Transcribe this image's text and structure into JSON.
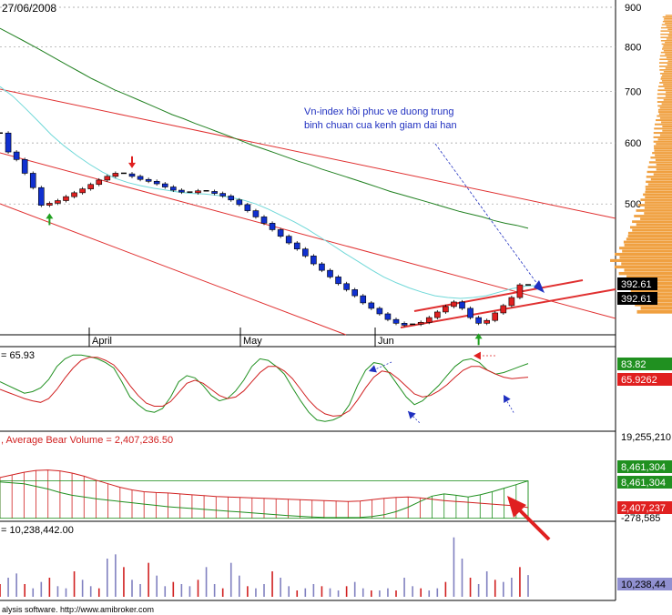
{
  "header": {
    "date": "27/06/2008",
    "footer": "alysis software. http://www.amibroker.com"
  },
  "annotation": {
    "line1": "Vn-index hồi phuc ve duong trung",
    "line2": "binh chuan cua kenh giam dai han"
  },
  "colors": {
    "up_candle": "#e02020",
    "down_candle": "#1030d0",
    "channel": "#e03030",
    "ma_long": "#208020",
    "ma_short": "#70d8d8",
    "osc_green": "#209020",
    "osc_red": "#d02020",
    "volume_bar": "#8080c0"
  },
  "chart_data": [
    {
      "type": "candlestick",
      "title": "",
      "y_scale": "log",
      "ylim": [
        340,
        900
      ],
      "y_ticks": [
        "900",
        "800",
        "700",
        "600",
        "500"
      ],
      "x_ticks": [
        "April",
        "May",
        "Jun"
      ],
      "last_value_badges": [
        "392.61",
        "392.61"
      ],
      "close": [
        618,
        584,
        571,
        548,
        525,
        498,
        501,
        505,
        511,
        517,
        523,
        530,
        537,
        543,
        548,
        547,
        543,
        538,
        535,
        531,
        526,
        521,
        518,
        517,
        520,
        519,
        516,
        512,
        506,
        499,
        490,
        481,
        472,
        463,
        454,
        445,
        437,
        428,
        418,
        410,
        402,
        394,
        387,
        380,
        372,
        366,
        360,
        354,
        350,
        348,
        349,
        351,
        356,
        362,
        368,
        373,
        366,
        356,
        350,
        353,
        361,
        369,
        378,
        392.61,
        392.61
      ],
      "ma_long": [
        845,
        830,
        815,
        800,
        785,
        770,
        755,
        741,
        727,
        715,
        703,
        693,
        683,
        673,
        663,
        653,
        645,
        636,
        628,
        620,
        612,
        604,
        596,
        589,
        582,
        575,
        568,
        562,
        555,
        549,
        543,
        537,
        531,
        525,
        519,
        514,
        509,
        504,
        499,
        494,
        489,
        485,
        481,
        476,
        472,
        469,
        465
      ],
      "ma_short": [
        710,
        690,
        665,
        640,
        615,
        595,
        578,
        563,
        550,
        540,
        533,
        528,
        524,
        521,
        518,
        516,
        515,
        513,
        510,
        506,
        500,
        492,
        483,
        474,
        464,
        453,
        442,
        431,
        421,
        411,
        402,
        395,
        389,
        384,
        380,
        378,
        377,
        378,
        380,
        384,
        388,
        391,
        392
      ],
      "markers": [
        {
          "kind": "up-arrow",
          "at": 6
        },
        {
          "kind": "down-arrow",
          "at": 16
        },
        {
          "kind": "up-arrow",
          "at": 58
        }
      ]
    },
    {
      "type": "line",
      "title": "= 65.93",
      "ylim": [
        0,
        100
      ],
      "value_badges": [
        "83.82",
        "65.9262"
      ],
      "series": [
        {
          "values": [
            60,
            55,
            50,
            45,
            47,
            52,
            63,
            80,
            90,
            95,
            95,
            93,
            90,
            85,
            78,
            60,
            40,
            30,
            22,
            20,
            25,
            40,
            60,
            68,
            65,
            55,
            42,
            35,
            38,
            48,
            62,
            80,
            90,
            88,
            80,
            70,
            52,
            35,
            20,
            10,
            8,
            10,
            15,
            30,
            55,
            75,
            85,
            83,
            70,
            55,
            40,
            30,
            35,
            45,
            55,
            68,
            80,
            88,
            90,
            85,
            75,
            70,
            72,
            76,
            80,
            83.82
          ]
        },
        {
          "values": [
            50,
            46,
            42,
            38,
            35,
            33,
            38,
            50,
            65,
            78,
            88,
            92,
            92,
            88,
            82,
            70,
            55,
            42,
            32,
            28,
            28,
            34,
            46,
            58,
            62,
            58,
            50,
            42,
            38,
            40,
            48,
            60,
            72,
            80,
            80,
            74,
            64,
            50,
            36,
            25,
            18,
            15,
            16,
            22,
            36,
            52,
            66,
            74,
            72,
            64,
            54,
            44,
            40,
            42,
            48,
            56,
            66,
            75,
            80,
            80,
            75,
            70,
            66,
            64,
            65,
            65.9262
          ]
        }
      ]
    },
    {
      "type": "line",
      "title": ", Average Bear Volume = 2,407,236.50",
      "ylim": [
        -278585,
        19255210
      ],
      "y_ticks": [
        "19,255,210",
        "-278,585"
      ],
      "value_badges": [
        "8,461,304",
        "8,461,304",
        "2,407,237"
      ],
      "series": [
        {
          "values": [
            8200000,
            8000000,
            7800000,
            7200000,
            6600000,
            5800000,
            5200000,
            4800000,
            4400000,
            4100000,
            3800000,
            3500000,
            3200000,
            2900000,
            2600000,
            2400000,
            2200000,
            2000000,
            1800000,
            1600000,
            1400000,
            1200000,
            1000000,
            800000,
            600000,
            450000,
            300000,
            200000,
            150000,
            150000,
            200000,
            400000,
            800000,
            1500000,
            2500000,
            3800000,
            5000000,
            5500000,
            5200000,
            4800000,
            5300000,
            6000000,
            6800000,
            7600000,
            8461304
          ]
        },
        {
          "values": [
            9200000,
            9800000,
            10400000,
            10800000,
            10900000,
            10700000,
            10200000,
            9500000,
            8600000,
            7800000,
            7000000,
            6400000,
            6000000,
            5800000,
            5700000,
            5500000,
            5300000,
            5100000,
            4900000,
            4800000,
            4700000,
            4600000,
            4500000,
            4400000,
            4300000,
            4200000,
            4100000,
            4000000,
            3900000,
            3800000,
            3900000,
            4200000,
            4500000,
            4700000,
            4800000,
            4600000,
            4300000,
            4000000,
            3800000,
            3600000,
            3400000,
            3200000,
            3000000,
            2800000,
            2407237
          ]
        }
      ]
    },
    {
      "type": "bar",
      "title": "= 10,238,442.00",
      "ylim": [
        0,
        30000000
      ],
      "value_badges": [
        "10,238,44"
      ],
      "values": [
        6000000,
        9000000,
        11000000,
        6000000,
        4000000,
        7000000,
        9000000,
        5000000,
        4000000,
        12000000,
        8000000,
        5000000,
        4000000,
        18000000,
        20000000,
        14000000,
        8000000,
        6000000,
        16000000,
        10000000,
        5000000,
        7000000,
        6000000,
        5000000,
        8000000,
        14000000,
        6000000,
        4000000,
        16000000,
        10000000,
        5000000,
        4000000,
        6000000,
        12000000,
        9000000,
        5000000,
        3000000,
        4000000,
        6000000,
        5000000,
        4000000,
        3000000,
        5000000,
        7000000,
        4000000,
        3000000,
        3000000,
        4000000,
        3000000,
        9000000,
        5000000,
        4000000,
        3000000,
        4000000,
        7000000,
        28000000,
        18000000,
        9000000,
        6000000,
        12000000,
        8000000,
        7000000,
        9000000,
        14000000,
        10238442
      ]
    }
  ]
}
